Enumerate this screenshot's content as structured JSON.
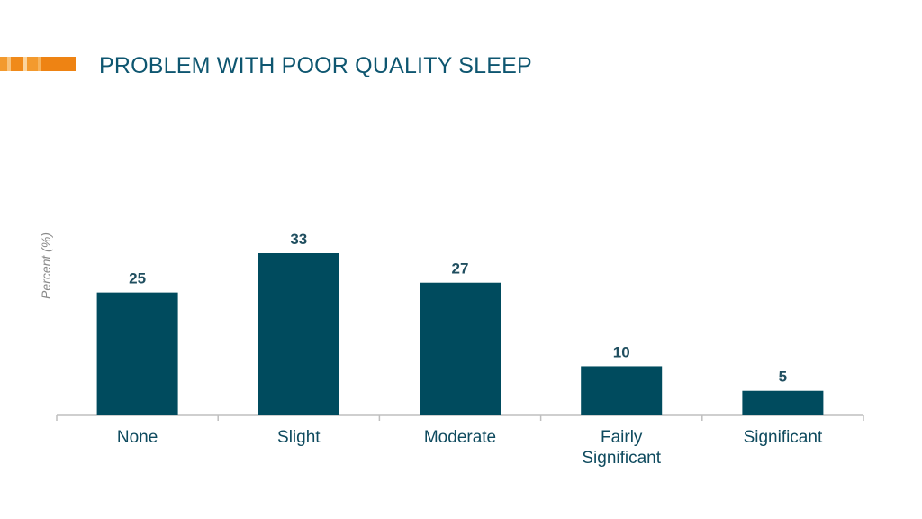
{
  "slide": {
    "title": "PROBLEM WITH POOR QUALITY SLEEP",
    "accent_colors": [
      "#f39a2e",
      "#f8c27a",
      "#f08a1a",
      "#fbd59f",
      "#f39a2e",
      "#f6b35c",
      "#ee8313"
    ]
  },
  "colors": {
    "bar": "#004b5e",
    "axis": "#bfbfbf",
    "title": "#0e5670"
  },
  "chart_data": {
    "type": "bar",
    "title": "PROBLEM WITH POOR QUALITY SLEEP",
    "xlabel": "",
    "ylabel": "Percent (%)",
    "categories": [
      [
        "None"
      ],
      [
        "Slight"
      ],
      [
        "Moderate"
      ],
      [
        "Fairly",
        "Significant"
      ],
      [
        "Significant"
      ]
    ],
    "values": [
      25,
      33,
      27,
      10,
      5
    ],
    "ylim": [
      0,
      33
    ],
    "grid": false,
    "data_labels": true,
    "legend": "none"
  }
}
